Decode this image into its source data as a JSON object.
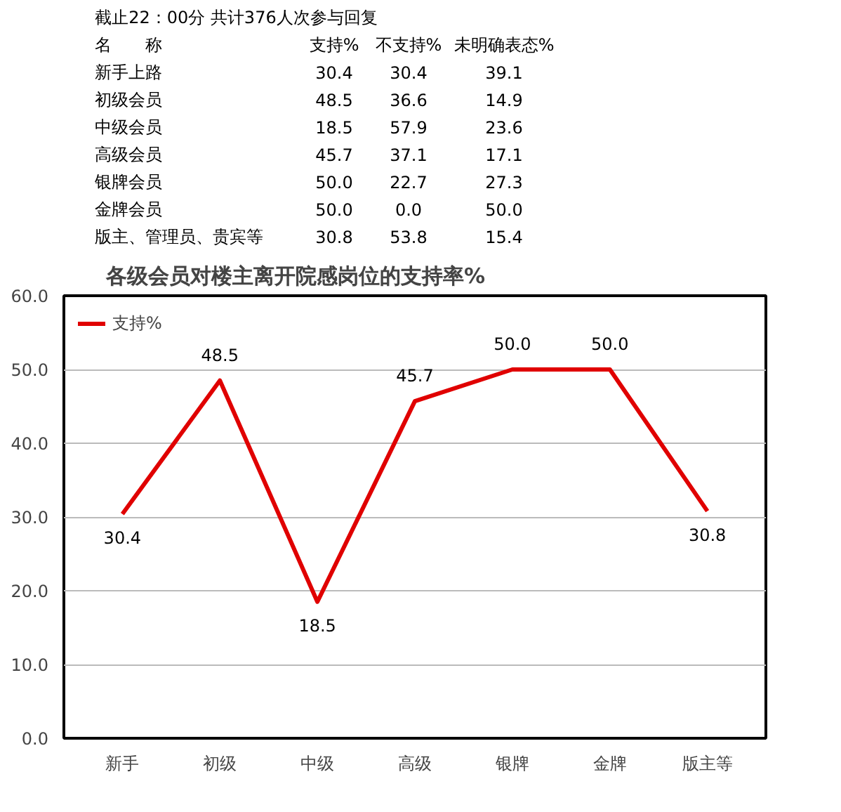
{
  "chart_data": [
    {
      "type": "other",
      "title": "截止22：00分 共计376人次参与回复",
      "annotations": [
        "名　　称"
      ],
      "categories": [
        "新手上路",
        "初级会员",
        "中级会员",
        "高级会员",
        "银牌会员",
        "金牌会员",
        "版主、管理员、贵宾等"
      ],
      "series": [
        {
          "name": "支持%",
          "values": [
            30.4,
            48.5,
            18.5,
            45.7,
            50.0,
            50.0,
            30.8
          ],
          "value_labels": [
            "30.4",
            "48.5",
            "18.5",
            "45.7",
            "50.0",
            "50.0",
            "30.8"
          ]
        },
        {
          "name": "不支持%",
          "values": [
            30.4,
            36.6,
            57.9,
            37.1,
            22.7,
            0.0,
            53.8
          ],
          "value_labels": [
            "30.4",
            "36.6",
            "57.9",
            "37.1",
            "22.7",
            "0.0",
            "53.8"
          ]
        },
        {
          "name": "未明确表态%",
          "values": [
            39.1,
            14.9,
            23.6,
            17.1,
            27.3,
            50.0,
            15.4
          ],
          "value_labels": [
            "39.1",
            "14.9",
            "23.6",
            "17.1",
            "27.3",
            "50.0",
            "15.4"
          ]
        }
      ]
    },
    {
      "type": "line",
      "title": "各级会员对楼主离开院感岗位的支持率%",
      "categories": [
        "新手",
        "初级",
        "中级",
        "高级",
        "银牌",
        "金牌",
        "版主等"
      ],
      "series": [
        {
          "name": "支持%",
          "color": "#e00000",
          "values": [
            30.4,
            48.5,
            18.5,
            45.7,
            50.0,
            50.0,
            30.8
          ],
          "value_labels": [
            "30.4",
            "48.5",
            "18.5",
            "45.7",
            "50.0",
            "50.0",
            "30.8"
          ]
        }
      ],
      "ylim": [
        0,
        60
      ],
      "yticks": [
        {
          "value": 0,
          "label": "0.0"
        },
        {
          "value": 10,
          "label": "10.0"
        },
        {
          "value": 20,
          "label": "20.0"
        },
        {
          "value": 30,
          "label": "30.0"
        },
        {
          "value": 40,
          "label": "40.0"
        },
        {
          "value": 50,
          "label": "50.0"
        },
        {
          "value": 60,
          "label": "60.0"
        }
      ],
      "grid": "y",
      "legend": "top left",
      "marker": "none",
      "line_style": "solid"
    }
  ]
}
